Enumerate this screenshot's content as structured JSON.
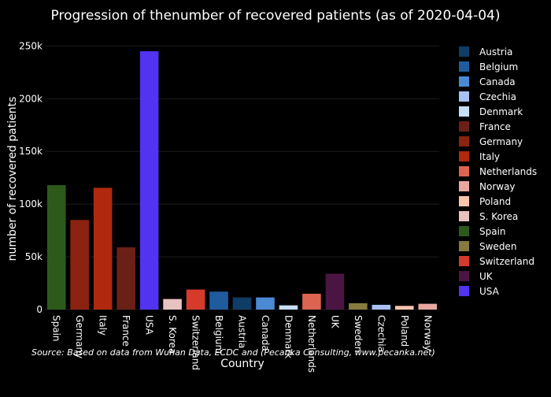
{
  "chart_data": {
    "type": "bar",
    "title": "Progression of thenumber of recovered patients (as of 2020-04-04)",
    "xlabel": "Country",
    "ylabel": "number of recovered patients",
    "ylim": [
      0,
      260000
    ],
    "yticks": [
      0,
      50000,
      100000,
      150000,
      200000,
      250000
    ],
    "ytick_labels": [
      "0",
      "50k",
      "100k",
      "150k",
      "200k",
      "250k"
    ],
    "grid": true,
    "legend_position": "right",
    "categories": [
      "Spain",
      "Germany",
      "Italy",
      "France",
      "USA",
      "S. Korea",
      "Switzerland",
      "Belgium",
      "Austria",
      "Canada",
      "Denmark",
      "Netherlands",
      "UK",
      "Sweden",
      "Czechia",
      "Poland",
      "Norway"
    ],
    "values": [
      118000,
      85000,
      115500,
      59000,
      245000,
      10000,
      19000,
      17000,
      11500,
      11500,
      4000,
      15000,
      34000,
      6000,
      4500,
      3500,
      5500
    ],
    "bar_colors": [
      "#2d5a1b",
      "#8c2210",
      "#b0290f",
      "#6b2017",
      "#5233f0",
      "#e6c3c1",
      "#d63a2b",
      "#1f5c9e",
      "#0f3d66",
      "#4a8ad4",
      "#c6dff5",
      "#dd6450",
      "#4a1543",
      "#867a3e",
      "#a7c1f2",
      "#f8c6ac",
      "#e8a89f"
    ],
    "legend": [
      {
        "name": "Austria",
        "color": "#0f3d66"
      },
      {
        "name": "Belgium",
        "color": "#1f5c9e"
      },
      {
        "name": "Canada",
        "color": "#4a8ad4"
      },
      {
        "name": "Czechia",
        "color": "#a7c1f2"
      },
      {
        "name": "Denmark",
        "color": "#c6dff5"
      },
      {
        "name": "France",
        "color": "#6b2017"
      },
      {
        "name": "Germany",
        "color": "#8c2210"
      },
      {
        "name": "Italy",
        "color": "#b0290f"
      },
      {
        "name": "Netherlands",
        "color": "#dd6450"
      },
      {
        "name": "Norway",
        "color": "#e8a89f"
      },
      {
        "name": "Poland",
        "color": "#f8c6ac"
      },
      {
        "name": "S. Korea",
        "color": "#e6c3c1"
      },
      {
        "name": "Spain",
        "color": "#2d5a1b"
      },
      {
        "name": "Sweden",
        "color": "#867a3e"
      },
      {
        "name": "Switzerland",
        "color": "#d63a2b"
      },
      {
        "name": "UK",
        "color": "#4a1543"
      },
      {
        "name": "USA",
        "color": "#5233f0"
      }
    ],
    "source_note": "Source: Based on data from Wuhan Data, ECDC and (Pecanka Consulting, www.pecanka.net)"
  }
}
